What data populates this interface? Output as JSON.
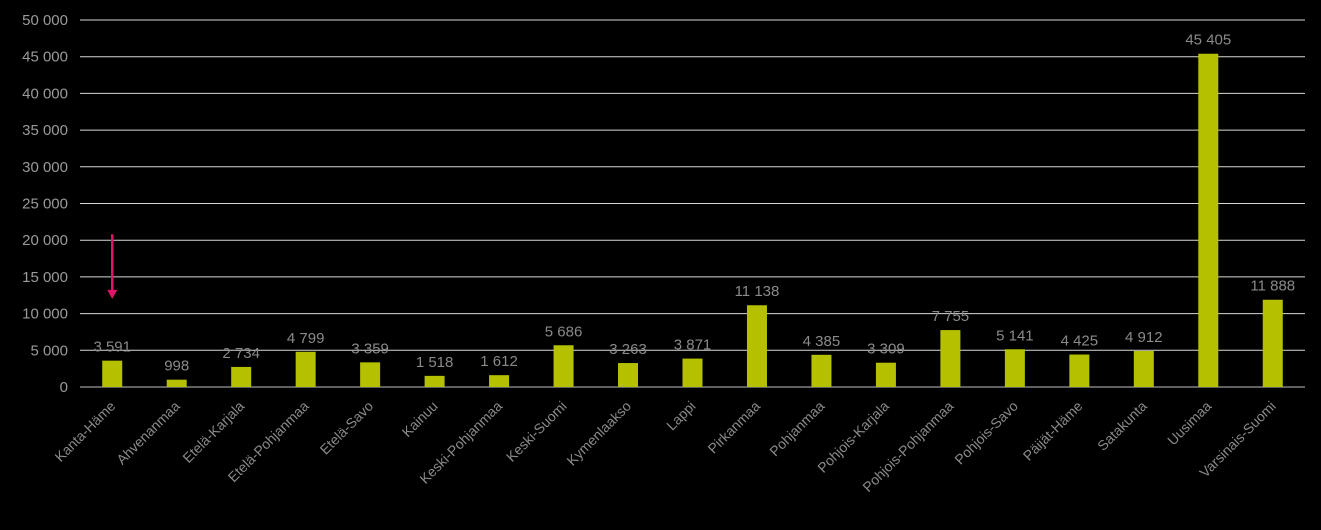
{
  "chart_data": {
    "type": "bar",
    "title": "",
    "xlabel": "",
    "ylabel": "",
    "ylim": [
      0,
      50000
    ],
    "yticks": [
      0,
      5000,
      10000,
      15000,
      20000,
      25000,
      30000,
      35000,
      40000,
      45000,
      50000
    ],
    "ytick_labels": [
      "0",
      "5 000",
      "10 000",
      "15 000",
      "20 000",
      "25 000",
      "30 000",
      "35 000",
      "40 000",
      "45 000",
      "50 000"
    ],
    "grid": true,
    "categories": [
      "Kanta-Häme",
      "Ahvenanmaa",
      "Etelä-Karjala",
      "Etelä-Pohjanmaa",
      "Etelä-Savo",
      "Kainuu",
      "Keski-Pohjanmaa",
      "Keski-Suomi",
      "Kymenlaakso",
      "Lappi",
      "Pirkanmaa",
      "Pohjanmaa",
      "Pohjois-Karjala",
      "Pohjois-Pohjanmaa",
      "Pohjois-Savo",
      "Päijät-Häme",
      "Satakunta",
      "Uusimaa",
      "Varsinais-Suomi"
    ],
    "values": [
      3591,
      998,
      2734,
      4799,
      3359,
      1518,
      1612,
      5686,
      3263,
      3871,
      11138,
      4385,
      3309,
      7755,
      5141,
      4425,
      4912,
      45405,
      11888
    ],
    "value_labels": [
      "3 591",
      "998",
      "2 734",
      "4 799",
      "3 359",
      "1 518",
      "1 612",
      "5 686",
      "3 263",
      "3 871",
      "11 138",
      "4 385",
      "3 309",
      "7 755",
      "5 141",
      "4 425",
      "4 912",
      "45 405",
      "11 888"
    ],
    "bar_color": "#b5c000",
    "annotation": {
      "type": "arrow",
      "category": "Kanta-Häme",
      "from_value": 20800,
      "to_value": 12000,
      "color": "#e0156a"
    }
  }
}
